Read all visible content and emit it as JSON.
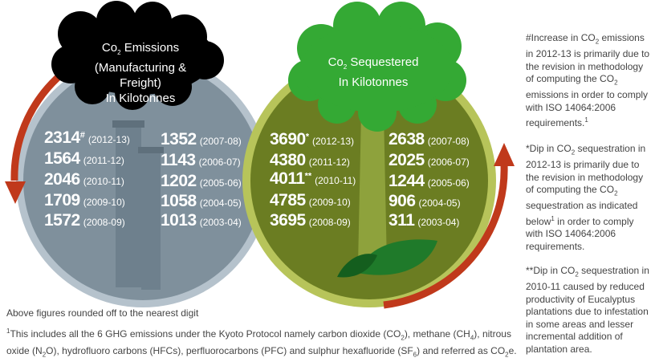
{
  "emissions": {
    "title_parts": [
      "Co",
      "2",
      " Emissions"
    ],
    "title_line2": "(Manufacturing & Freight)",
    "title_line3": "In Kilotonnes",
    "left_col": [
      {
        "value": "2314",
        "mark": "#",
        "year": "(2012-13)"
      },
      {
        "value": "1564",
        "mark": "",
        "year": "(2011-12)"
      },
      {
        "value": "2046",
        "mark": "",
        "year": "(2010-11)"
      },
      {
        "value": "1709",
        "mark": "",
        "year": "(2009-10)"
      },
      {
        "value": "1572",
        "mark": "",
        "year": "(2008-09)"
      }
    ],
    "right_col": [
      {
        "value": "1352",
        "year": "(2007-08)"
      },
      {
        "value": "1143",
        "year": "(2006-07)"
      },
      {
        "value": "1202",
        "year": "(2005-06)"
      },
      {
        "value": "1058",
        "year": "(2004-05)"
      },
      {
        "value": "1013",
        "year": "(2003-04)"
      }
    ],
    "colors": {
      "circle": "#7f909c",
      "cloud": "#000000",
      "arrow": "#c0391b"
    }
  },
  "sequestered": {
    "title_parts": [
      "Co",
      "2",
      " Sequestered"
    ],
    "title_line2": "In Kilotonnes",
    "left_col": [
      {
        "value": "3690",
        "mark": "*",
        "year": "(2012-13)"
      },
      {
        "value": "4380",
        "mark": "",
        "year": "(2011-12)"
      },
      {
        "value": "4011",
        "mark": "**",
        "year": "(2010-11)"
      },
      {
        "value": "4785",
        "mark": "",
        "year": "(2009-10)"
      },
      {
        "value": "3695",
        "mark": "",
        "year": "(2008-09)"
      }
    ],
    "right_col": [
      {
        "value": "2638",
        "year": "(2007-08)"
      },
      {
        "value": "2025",
        "year": "(2006-07)"
      },
      {
        "value": "1244",
        "year": "(2005-06)"
      },
      {
        "value": "906",
        "year": "(2004-05)"
      },
      {
        "value": "311",
        "year": "(2003-04)"
      }
    ],
    "colors": {
      "circle": "#6b7d22",
      "canopy": "#34a934",
      "arrow": "#c0391b"
    }
  },
  "notes": {
    "increase": {
      "a": "#Increase in CO",
      "b": " emissions in 2012-13 is primarily due to the revision in methodology of  computing the CO",
      "c": " emissions in order to comply with ISO 14064:2006 requirements.",
      "d": "1"
    },
    "dip": {
      "a": "*Dip in CO",
      "b": " sequestration in 2012-13 is primarily due to the revision in methodology of  computing the CO",
      "c": " sequestration as indicated below",
      "d": "1",
      "e": " in order to comply with ISO 14064:2006 requirements."
    },
    "dip2": {
      "a": "**Dip in CO",
      "b": " sequestration in 2010-11 caused by reduced productivity of Eucalyptus plantations due to infestation in some areas and lesser incremental addition of plantation area."
    },
    "sub2": "2"
  },
  "footer": {
    "rounded": "Above figures rounded off to the nearest digit",
    "fn_mark": "1",
    "fn_a": "This includes all the 6 GHG emissions under the Kyoto Protocol namely carbon dioxide (CO",
    "fn_b": "), methane (CH",
    "fn_c": "), nitrous",
    "fn_d": "oxide (N",
    "fn_e": "O), hydrofluoro carbons (HFCs), perfluorocarbons (PFC) and sulphur hexafluoride (SF",
    "fn_f": ") and referred as CO",
    "fn_g": "e.",
    "sub2": "2",
    "sub4": "4",
    "sub6": "6"
  }
}
